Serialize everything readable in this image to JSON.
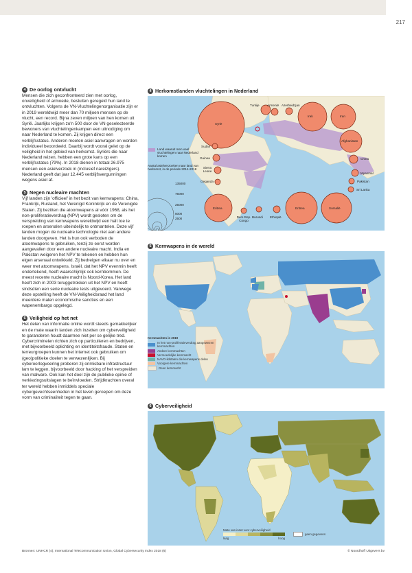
{
  "page_number": "217",
  "sections": [
    {
      "num": "4",
      "title": "De oorlog ontvlucht",
      "text": "Mensen die zich geconfronteerd zien met oorlog, onveiligheid of armoede, besluiten geregeld hun land te ontvluchten. Volgens de VN-Vluchtelin­genorganisatie zijn er in 2019 wereldwijd meer dan 70 miljoen mensen op de vlucht, een record. Bijna zeven miljoen van hen komen uit Syrië. Jaarlijks krijgen zo'n 500 door de VN geselec­teerde bewoners van vluchtelingenkampen een uitnodiging om naar Nederland te komen. Zij krijgen direct een verblijfsstatus. Anderen moeten asiel aanvragen en worden individueel beoordeeld. Daarbij wordt vooral gelet op de veiligheid in het gebied van herkomst. Syriërs die naar Nederland reizen, hebben een grote kans op een verblijfsstatus (79%). In 2018 dienen in totaal 26.975 mensen een asielverzoek in (inclusief nareizigers). Nederland geeft dat jaar 12.445 verblijfsvergunningen wegens asiel af."
    },
    {
      "num": "5",
      "title": "Negen nucleaire machten",
      "text": "Vijf landen zijn 'officieel' in het bezit van kern­wapens: China, Frankrijk, Rusland, het Verenigd Koninkrijk en de Verenigde Staten. Zij bezitten die atoomwapens al vóór 1968, als het non-proli­feratieverdrag (NPV) wordt gesloten om de verspreiding van kernwapens wereldwijd een halt toe te roepen en arsenalen uiteindelijk te ontmantelen. Deze vijf landen mogen de nucleai­re technologie niet aan andere landen doorge­ven. Het is hun ook verboden de atoomwapens te gebruiken, tenzij ze eerst worden aangevallen door een andere nucleaire macht. India en Pakistan weigeren het NPV te tekenen en hebben hun eigen arsenaal ontwikkeld. Zij bedreigen elkaar nu over en weer met atoomwa­pens. Israël, dat het NPV evenmin heeft onderte­kend, heeft waarschijnlijk ook kernbommen. De meest recente nucleaire macht is Noord-Korea. Het land heeft zich in 2003 teruggetrokken uit het NPV en heeft sindsdien een serie nucleaire tests uitgevoerd. Vanwege deze opstelling heeft de VN-Veiligheidsraad het land meerdere malen economische sancties en een wapenembargo opgelegd."
    },
    {
      "num": "6",
      "title": "Veiligheid op het net",
      "text": "Het delen van informatie online wordt steeds gemakkelijker en de mate waarin landen zich inzetten om cyberveiligheid te garanderen houdt daarmee niet per se gelijke tred. Cybercriminelen richten zich op particulieren en bedrijven, met bijvoorbeeld oplichting en identiteitsfraude. Staten en terreurgroepen kunnen het internet ook gebruiken om (geo)politieke doelen te verwezenlijken. Bij cyberoorlogvoering probe­ren zij onmisbare infrastructuur lam te leggen, bijvoorbeeld door hacking of het verspreiden van malware. Ook kan het doel zijn de publieke opinie of verkiezingsuitslagen te beïnvloeden. Strijdkrachten overal ter wereld hebben inmid­dels speciale cybergevechtseenheden in het leven geroepen om deze vorm van criminaliteit tegen te gaan."
    }
  ],
  "map1": {
    "num": "4",
    "title": "Herkomstlanden vluchtelingen in Nederland",
    "legend_area": "Land waaruit men veel vluchtelingen naar Nederland komen",
    "legend_circles_title": "Aantal asielverzoeken naar land van herkomst, in de periode 2014-2018",
    "legend_values": [
      "135000",
      "75000",
      "25000",
      "5000",
      "2500"
    ],
    "countries": [
      "Turkije",
      "Armenië",
      "Azerbeidzjan",
      "Syrië",
      "Irak",
      "Iran",
      "Afghanistan",
      "China",
      "Sudan",
      "Guinea",
      "Sierra Leone",
      "Oeganda",
      "Myanmar",
      "Pakistan",
      "Sri Lanka",
      "Eritrea",
      "Somalië",
      "Eritrea",
      "Dem.Rep. Congo",
      "Burundi",
      "Ethiopië"
    ],
    "colors": {
      "bubble": "#f08a6c",
      "highlight": "#b99ad0",
      "land": "#f1ecd6",
      "sea": "#a9d2ea"
    }
  },
  "map2": {
    "num": "5",
    "title": "Kernwapens in de wereld",
    "legend_title": "Kernmachten in 2019",
    "legend": [
      {
        "label": "In het non-proliferatieverdrag aangewezen kernmachten",
        "color": "#4a8fcc"
      },
      {
        "label": "Andere kernmachten",
        "color": "#9a3d8f"
      },
      {
        "label": "Vermoedelijke kernmacht",
        "color": "#c8102e"
      },
      {
        "label": "NAVO-lidstaten die kernwapens delen",
        "color": "#6fb3a8"
      },
      {
        "label": "Voorgere kernmachten",
        "color": "#f2c4a2"
      },
      {
        "label": "Geen kernmacht",
        "color": "#efe9d5"
      }
    ]
  },
  "map3": {
    "num": "6",
    "title": "Cyberveiligheid",
    "legend_title": "Mate van inzet voor cyberveiligheid",
    "legend_low": "laag",
    "legend_high": "hoog",
    "legend_none": "geen gegevens",
    "scale": [
      "#f5efc7",
      "#dfd99a",
      "#b8b45f",
      "#8a9040",
      "#5e6b22"
    ]
  },
  "footer": {
    "sources": "Bronnen: UNHCR (4); International Telecommunication Union, Global Cybersecurity Index 2018 (6)",
    "copyright": "© Noordhoff Uitgevers bv"
  }
}
